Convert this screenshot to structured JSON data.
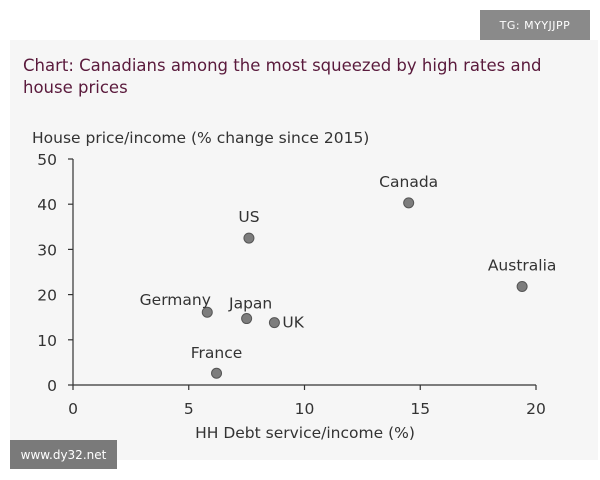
{
  "watermarks": {
    "top": "TG: MYYJJPP",
    "bottom": "www.dy32.net"
  },
  "colors": {
    "title": "#5a1a3c",
    "point_fill": "#7d7d7d",
    "point_stroke": "#555555",
    "axis": "#333333",
    "panel": "#f6f6f6"
  },
  "chart_data": {
    "type": "scatter",
    "title": "Chart: Canadians among the most squeezed by high rates and house prices",
    "ylabel": "House price/income (% change since 2015)",
    "xlabel": "HH Debt service/income (%)",
    "xlim": [
      0,
      20
    ],
    "ylim": [
      0,
      50
    ],
    "xticks": [
      0,
      5,
      10,
      15,
      20
    ],
    "yticks": [
      0,
      10,
      20,
      30,
      40,
      50
    ],
    "grid": false,
    "points": [
      {
        "label": "Canada",
        "x": 14.5,
        "y": 40.3
      },
      {
        "label": "US",
        "x": 7.6,
        "y": 32.5
      },
      {
        "label": "Australia",
        "x": 19.4,
        "y": 21.8
      },
      {
        "label": "Germany",
        "x": 5.8,
        "y": 16.1
      },
      {
        "label": "Japan",
        "x": 7.5,
        "y": 14.7
      },
      {
        "label": "UK",
        "x": 8.7,
        "y": 13.8
      },
      {
        "label": "France",
        "x": 6.2,
        "y": 2.6
      }
    ]
  }
}
